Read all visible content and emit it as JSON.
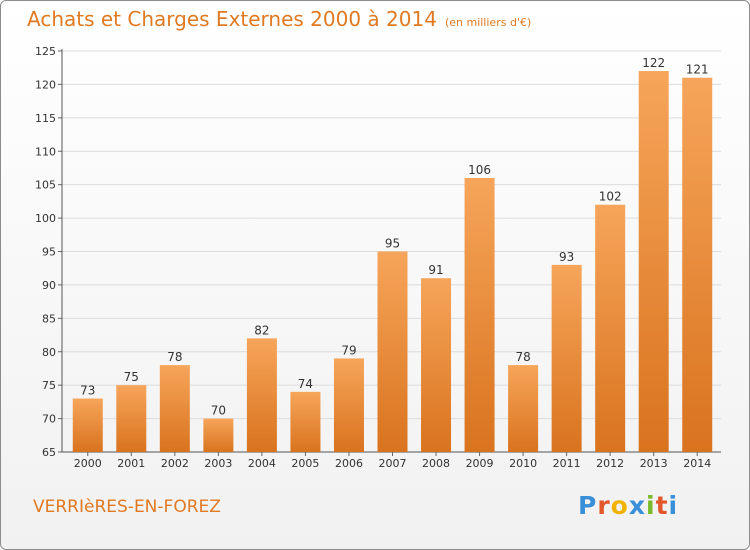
{
  "header": {
    "title": "Achats et Charges Externes 2000 à 2014",
    "subtitle": "(en milliers d'€)"
  },
  "footer": {
    "place": "VERRIèRES-EN-FOREZ",
    "brand": "Proxiti"
  },
  "colors": {
    "title": "#e07a22",
    "bar_light": "#f6a55a",
    "bar_dark": "#d9731e",
    "grid": "#dcdcdc",
    "logo": [
      "#3a8fd9",
      "#e2572b",
      "#f0b400",
      "#3a8fd9",
      "#7ab928",
      "#e2572b",
      "#3a8fd9"
    ]
  },
  "chart_data": {
    "type": "bar",
    "title": "Achats et Charges Externes 2000 à 2014",
    "subtitle": "(en milliers d'€)",
    "categories": [
      "2000",
      "2001",
      "2002",
      "2003",
      "2004",
      "2005",
      "2006",
      "2007",
      "2008",
      "2009",
      "2010",
      "2011",
      "2012",
      "2013",
      "2014"
    ],
    "values": [
      73,
      75,
      78,
      70,
      82,
      74,
      79,
      95,
      91,
      106,
      78,
      93,
      102,
      122,
      121
    ],
    "ylim": [
      65,
      125
    ],
    "yticks": [
      65,
      70,
      75,
      80,
      85,
      90,
      95,
      100,
      105,
      110,
      115,
      120,
      125
    ],
    "grid": true,
    "legend": "none"
  }
}
